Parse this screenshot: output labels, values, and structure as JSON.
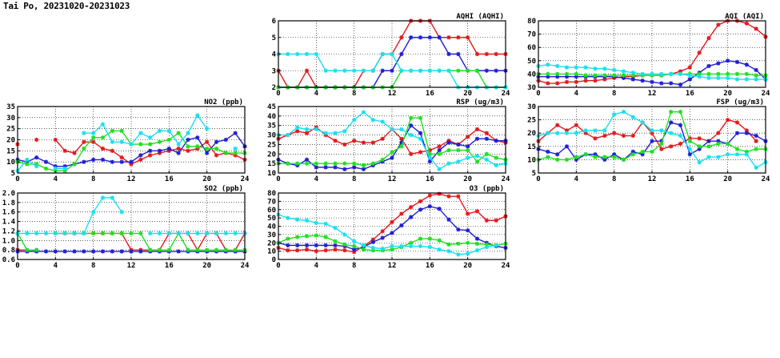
{
  "title": "Tai Po, 20231020-20231023",
  "colors": {
    "red": "#e31a1c",
    "blue": "#1f1fd6",
    "green": "#1ee01e",
    "cyan": "#18e0f0"
  },
  "chart_data": [
    {
      "id": "aqhi",
      "title": "AQHI (AQHI)",
      "type": "line",
      "xlim": [
        0,
        24
      ],
      "xticks": [
        0,
        4,
        8,
        12,
        16,
        20,
        24
      ],
      "ylim": [
        2,
        6
      ],
      "yticks": [
        2,
        3,
        4,
        5,
        6
      ],
      "ytick_labels": [
        "2",
        "3",
        "4",
        "5",
        "6"
      ],
      "x": [
        0,
        1,
        2,
        3,
        4,
        5,
        6,
        7,
        8,
        9,
        10,
        11,
        12,
        13,
        14,
        15,
        16,
        17,
        18,
        19,
        20,
        21,
        22,
        23,
        24
      ],
      "series": [
        {
          "color": "red",
          "values": [
            3,
            2,
            2,
            3,
            2,
            2,
            2,
            2,
            2,
            3,
            3,
            4,
            4,
            5,
            6,
            6,
            6,
            5,
            5,
            5,
            5,
            4,
            4,
            4,
            4
          ]
        },
        {
          "color": "blue",
          "values": [
            2,
            2,
            2,
            2,
            2,
            2,
            2,
            2,
            2,
            2,
            2,
            3,
            3,
            4,
            5,
            5,
            5,
            5,
            4,
            4,
            3,
            3,
            3,
            3,
            3
          ]
        },
        {
          "color": "green",
          "values": [
            2,
            2,
            2,
            2,
            2,
            2,
            2,
            2,
            2,
            2,
            2,
            2,
            2,
            3,
            3,
            3,
            3,
            3,
            3,
            3,
            3,
            3,
            2,
            2,
            2
          ]
        },
        {
          "color": "cyan",
          "values": [
            4,
            4,
            4,
            4,
            4,
            3,
            3,
            3,
            3,
            3,
            3,
            4,
            4,
            3,
            3,
            3,
            3,
            3,
            3,
            2,
            2,
            2,
            2,
            2,
            2
          ]
        }
      ]
    },
    {
      "id": "aqi",
      "title": "AQI (AQI)",
      "type": "line",
      "xlim": [
        0,
        24
      ],
      "xticks": [
        0,
        4,
        8,
        12,
        16,
        20,
        24
      ],
      "ylim": [
        30,
        80
      ],
      "yticks": [
        30,
        40,
        50,
        60,
        70,
        80
      ],
      "ytick_labels": [
        "30",
        "40",
        "50",
        "60",
        "70",
        "80"
      ],
      "x": [
        0,
        1,
        2,
        3,
        4,
        5,
        6,
        7,
        8,
        9,
        10,
        11,
        12,
        13,
        14,
        15,
        16,
        17,
        18,
        19,
        20,
        21,
        22,
        23,
        24
      ],
      "series": [
        {
          "color": "red",
          "values": [
            35,
            33,
            33,
            34,
            34,
            35,
            35,
            36,
            37,
            38,
            38,
            39,
            39,
            39,
            40,
            42,
            45,
            56,
            67,
            77,
            80,
            80,
            78,
            74,
            68
          ]
        },
        {
          "color": "blue",
          "values": [
            38,
            38,
            38,
            38,
            38,
            38,
            38,
            38,
            38,
            37,
            36,
            35,
            34,
            33,
            33,
            32,
            36,
            41,
            46,
            48,
            50,
            49,
            47,
            43,
            36
          ]
        },
        {
          "color": "green",
          "values": [
            40,
            40,
            40,
            40,
            40,
            39,
            39,
            39,
            39,
            39,
            39,
            39,
            39,
            39,
            40,
            40,
            40,
            40,
            40,
            40,
            40,
            40,
            40,
            39,
            39
          ]
        },
        {
          "color": "cyan",
          "values": [
            46,
            47,
            46,
            45,
            45,
            45,
            44,
            44,
            43,
            42,
            41,
            40,
            40,
            40,
            40,
            40,
            39,
            38,
            37,
            37,
            37,
            36,
            36,
            36,
            36
          ]
        }
      ]
    },
    {
      "id": "no2",
      "title": "NO2 (ppb)",
      "type": "line",
      "xlim": [
        0,
        24
      ],
      "xticks": [
        0,
        4,
        8,
        12,
        16,
        20,
        24
      ],
      "ylim": [
        5,
        35
      ],
      "yticks": [
        5,
        10,
        15,
        20,
        25,
        30,
        35
      ],
      "ytick_labels": [
        "5",
        "10",
        "15",
        "20",
        "25",
        "30",
        "35"
      ],
      "x": [
        0,
        1,
        2,
        3,
        4,
        5,
        6,
        7,
        8,
        9,
        10,
        11,
        12,
        13,
        14,
        15,
        16,
        17,
        18,
        19,
        20,
        21,
        22,
        23,
        24
      ],
      "series": [
        {
          "color": "red",
          "values": [
            18,
            null,
            20,
            null,
            20,
            15,
            14,
            19,
            19,
            16,
            15,
            12,
            9,
            11,
            13,
            14,
            15,
            16,
            15,
            16,
            19,
            13,
            14,
            13,
            11
          ]
        },
        {
          "color": "blue",
          "values": [
            11,
            10,
            12,
            10,
            8,
            8,
            9,
            10,
            11,
            11,
            10,
            10,
            10,
            13,
            15,
            15,
            16,
            14,
            20,
            21,
            14,
            19,
            20,
            23,
            17
          ]
        },
        {
          "color": "green",
          "values": [
            10,
            9,
            9,
            7,
            6,
            6,
            9,
            16,
            21,
            21,
            24,
            24,
            18,
            18,
            18,
            19,
            20,
            23,
            17,
            17,
            16,
            16,
            14,
            14,
            14
          ]
        },
        {
          "color": "cyan",
          "values": [
            6,
            11,
            8,
            null,
            7,
            7,
            null,
            23,
            23,
            27,
            19,
            19,
            18,
            23,
            21,
            24,
            24,
            18,
            23,
            31,
            25,
            null,
            null,
            16,
            null
          ]
        }
      ]
    },
    {
      "id": "rsp",
      "title": "RSP (ug/m3)",
      "type": "line",
      "xlim": [
        0,
        24
      ],
      "xticks": [
        0,
        4,
        8,
        12,
        16,
        20,
        24
      ],
      "ylim": [
        10,
        45
      ],
      "yticks": [
        10,
        15,
        20,
        25,
        30,
        35,
        40,
        45
      ],
      "ytick_labels": [
        "10",
        "15",
        "20",
        "25",
        "30",
        "35",
        "40",
        "45"
      ],
      "x": [
        0,
        1,
        2,
        3,
        4,
        5,
        6,
        7,
        8,
        9,
        10,
        11,
        12,
        13,
        14,
        15,
        16,
        17,
        18,
        19,
        20,
        21,
        22,
        23,
        24
      ],
      "series": [
        {
          "color": "red",
          "values": [
            28,
            30,
            32,
            31,
            34,
            30,
            27,
            25,
            27,
            26,
            26,
            28,
            33,
            28,
            20,
            21,
            22,
            24,
            27,
            25,
            29,
            33,
            31,
            27,
            26
          ]
        },
        {
          "color": "blue",
          "values": [
            17,
            15,
            14,
            17,
            13,
            13,
            13,
            12,
            13,
            12,
            14,
            16,
            18,
            26,
            35,
            31,
            16,
            22,
            26,
            25,
            24,
            28,
            28,
            27,
            27
          ]
        },
        {
          "color": "green",
          "values": [
            15,
            15,
            15,
            15,
            15,
            15,
            15,
            15,
            15,
            14,
            15,
            17,
            21,
            24,
            39,
            39,
            20,
            20,
            22,
            22,
            22,
            16,
            20,
            18,
            17
          ]
        },
        {
          "color": "cyan",
          "values": [
            30,
            30,
            34,
            33,
            33,
            31,
            31,
            32,
            38,
            42,
            38,
            37,
            33,
            33,
            30,
            28,
            18,
            12,
            15,
            16,
            18,
            19,
            17,
            14,
            15
          ]
        }
      ]
    },
    {
      "id": "fsp",
      "title": "FSP (ug/m3)",
      "type": "line",
      "xlim": [
        0,
        24
      ],
      "xticks": [
        0,
        4,
        8,
        12,
        16,
        20,
        24
      ],
      "ylim": [
        5,
        30
      ],
      "yticks": [
        5,
        10,
        15,
        20,
        25,
        30
      ],
      "ytick_labels": [
        "5",
        "10",
        "15",
        "20",
        "25",
        "30"
      ],
      "x": [
        0,
        1,
        2,
        3,
        4,
        5,
        6,
        7,
        8,
        9,
        10,
        11,
        12,
        13,
        14,
        15,
        16,
        17,
        18,
        19,
        20,
        21,
        22,
        23,
        24
      ],
      "series": [
        {
          "color": "red",
          "values": [
            17,
            20,
            23,
            21,
            23,
            20,
            18,
            19,
            20,
            19,
            19,
            24,
            20,
            14,
            15,
            16,
            18,
            18,
            17,
            20,
            25,
            24,
            21,
            17,
            null
          ]
        },
        {
          "color": "blue",
          "values": [
            14,
            13,
            12,
            15,
            10,
            12,
            12,
            10,
            12,
            10,
            13,
            12,
            17,
            17,
            24,
            23,
            12,
            14,
            17,
            17,
            16,
            20,
            20,
            19,
            17
          ]
        },
        {
          "color": "green",
          "values": [
            10,
            11,
            10,
            10,
            11,
            12,
            11,
            11,
            11,
            10,
            12,
            13,
            13,
            16,
            28,
            28,
            17,
            15,
            15,
            16,
            16,
            14,
            13,
            14,
            14
          ]
        },
        {
          "color": "cyan",
          "values": [
            19,
            20,
            20,
            20,
            20,
            21,
            21,
            21,
            27,
            28,
            26,
            24,
            21,
            21,
            20,
            19,
            14,
            9,
            11,
            11,
            12,
            12,
            12,
            7,
            9
          ]
        }
      ]
    },
    {
      "id": "so2",
      "title": "SO2 (ppb)",
      "type": "line",
      "xlim": [
        0,
        24
      ],
      "xticks": [
        0,
        4,
        8,
        12,
        16,
        20,
        24
      ],
      "ylim": [
        0.6,
        2.0
      ],
      "yticks": [
        0.6,
        0.8,
        1.0,
        1.2,
        1.4,
        1.6,
        1.8,
        2.0
      ],
      "ytick_labels": [
        "0.6",
        "0.8",
        "1.0",
        "1.2",
        "1.4",
        "1.6",
        "1.8",
        "2.0"
      ],
      "x": [
        0,
        1,
        2,
        3,
        4,
        5,
        6,
        7,
        8,
        9,
        10,
        11,
        12,
        13,
        14,
        15,
        16,
        17,
        18,
        19,
        20,
        21,
        22,
        23,
        24
      ],
      "series": [
        {
          "color": "red",
          "values": [
            0.8,
            0.8,
            0.8,
            null,
            1.15,
            1.15,
            1.15,
            1.15,
            1.15,
            1.15,
            1.15,
            1.15,
            0.8,
            0.8,
            0.8,
            0.8,
            1.15,
            1.15,
            1.15,
            0.8,
            1.15,
            1.15,
            0.8,
            0.8,
            1.15
          ]
        },
        {
          "color": "blue",
          "values": [
            0.77,
            0.77,
            0.77,
            0.77,
            0.77,
            0.77,
            0.77,
            0.77,
            0.77,
            0.77,
            0.77,
            0.77,
            0.77,
            0.77,
            0.77,
            0.77,
            0.77,
            0.77,
            0.77,
            0.77,
            0.77,
            0.77,
            0.77,
            0.77,
            0.77
          ]
        },
        {
          "color": "green",
          "values": [
            1.15,
            0.8,
            0.8,
            null,
            1.15,
            1.15,
            1.15,
            1.15,
            1.15,
            1.15,
            1.15,
            1.15,
            1.15,
            1.15,
            0.8,
            0.8,
            0.8,
            1.15,
            0.8,
            0.8,
            0.8,
            0.8,
            0.8,
            0.8,
            0.8
          ]
        },
        {
          "color": "cyan",
          "values": [
            1.15,
            1.15,
            1.15,
            1.15,
            1.15,
            1.15,
            1.15,
            1.15,
            1.6,
            1.9,
            1.9,
            1.6,
            null,
            null,
            1.15,
            1.15,
            1.15,
            1.15,
            1.15,
            1.15,
            1.15,
            1.15,
            1.15,
            1.15,
            1.15
          ]
        }
      ]
    },
    {
      "id": "o3",
      "title": "O3 (ppb)",
      "type": "line",
      "xlim": [
        0,
        24
      ],
      "xticks": [
        0,
        4,
        8,
        12,
        16,
        20,
        24
      ],
      "ylim": [
        0,
        80
      ],
      "yticks": [
        0,
        10,
        20,
        30,
        40,
        50,
        60,
        70,
        80
      ],
      "ytick_labels": [
        "0",
        "10",
        "20",
        "30",
        "40",
        "50",
        "60",
        "70",
        "80"
      ],
      "x": [
        0,
        1,
        2,
        3,
        4,
        5,
        6,
        7,
        8,
        9,
        10,
        11,
        12,
        13,
        14,
        15,
        16,
        17,
        18,
        19,
        20,
        21,
        22,
        23,
        24
      ],
      "series": [
        {
          "color": "red",
          "values": [
            14,
            11,
            11,
            12,
            10,
            11,
            12,
            11,
            9,
            16,
            24,
            34,
            45,
            55,
            63,
            70,
            77,
            79,
            76,
            76,
            55,
            58,
            47,
            47,
            52
          ]
        },
        {
          "color": "blue",
          "values": [
            20,
            17,
            17,
            17,
            17,
            17,
            17,
            16,
            12,
            15,
            21,
            26,
            32,
            41,
            51,
            60,
            64,
            61,
            48,
            36,
            35,
            25,
            20,
            16,
            14
          ]
        },
        {
          "color": "green",
          "values": [
            20,
            25,
            27,
            28,
            29,
            27,
            22,
            18,
            16,
            12,
            11,
            11,
            12,
            15,
            20,
            25,
            25,
            23,
            18,
            19,
            20,
            19,
            18,
            17,
            19
          ]
        },
        {
          "color": "cyan",
          "values": [
            54,
            50,
            48,
            47,
            44,
            43,
            38,
            30,
            22,
            17,
            14,
            13,
            16,
            16,
            16,
            16,
            15,
            12,
            10,
            6,
            7,
            11,
            15,
            17,
            null
          ]
        }
      ]
    }
  ]
}
